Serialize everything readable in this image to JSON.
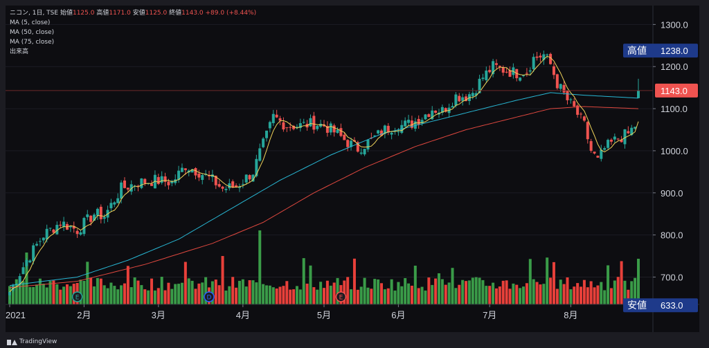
{
  "legend": {
    "symbol": "ニコン, 1日, TSE",
    "open_label": "始値",
    "open": "1125.0",
    "high_label": "高値",
    "high": "1171.0",
    "low_label": "安値",
    "low": "1125.0",
    "close_label": "終値",
    "close": "1143.0",
    "change": "+89.0 (+8.44%)",
    "ma5": "MA (5, close)",
    "ma50": "MA (50, close)",
    "ma75": "MA (75, close)",
    "volume": "出来高"
  },
  "footer": {
    "brand": "TradingView"
  },
  "colors": {
    "up": "#26a69a",
    "down": "#ef5350",
    "ma5": "#f0d35a",
    "ma50": "#28b7d4",
    "ma75": "#e0483f",
    "vol_up": "#3a9b48",
    "vol_down": "#e8403a",
    "badge": "#1e3a8a"
  },
  "chart_data": {
    "type": "candlestick",
    "y_axis": {
      "ticks": [
        "1300.0",
        "1200.0",
        "1100.0",
        "1000.0",
        "900.0",
        "800.0",
        "700.0"
      ],
      "range": [
        635,
        1345
      ]
    },
    "x_axis": {
      "ticks": [
        "2021",
        "2月",
        "3月",
        "4月",
        "5月",
        "6月",
        "7月",
        "8月"
      ]
    },
    "price_labels": {
      "high_label": "高値",
      "high": "1238.0",
      "last": "1143.0",
      "low_label": "安値",
      "low": "633.0"
    },
    "events": [
      {
        "label": "E",
        "date": "2月"
      },
      {
        "label": "D",
        "date": "3月"
      },
      {
        "label": "E",
        "date": "5月"
      }
    ],
    "anchors": [
      [
        0,
        665
      ],
      [
        5,
        740
      ],
      [
        10,
        800
      ],
      [
        15,
        830
      ],
      [
        20,
        812
      ],
      [
        25,
        850
      ],
      [
        28,
        845
      ],
      [
        33,
        910
      ],
      [
        38,
        925
      ],
      [
        43,
        930
      ],
      [
        48,
        925
      ],
      [
        52,
        965
      ],
      [
        56,
        950
      ],
      [
        60,
        930
      ],
      [
        63,
        910
      ],
      [
        67,
        915
      ],
      [
        72,
        950
      ],
      [
        74,
        995
      ],
      [
        76,
        1035
      ],
      [
        78,
        1080
      ],
      [
        82,
        1060
      ],
      [
        86,
        1060
      ],
      [
        90,
        1065
      ],
      [
        93,
        1060
      ],
      [
        96,
        1045
      ],
      [
        100,
        1020
      ],
      [
        103,
        1005
      ],
      [
        107,
        1025
      ],
      [
        111,
        1050
      ],
      [
        114,
        1060
      ],
      [
        116,
        1060
      ],
      [
        119,
        1065
      ],
      [
        122,
        1080
      ],
      [
        125,
        1100
      ],
      [
        128,
        1095
      ],
      [
        132,
        1130
      ],
      [
        135,
        1130
      ],
      [
        137,
        1140
      ],
      [
        140,
        1175
      ],
      [
        143,
        1200
      ],
      [
        147,
        1190
      ],
      [
        150,
        1185
      ],
      [
        153,
        1190
      ],
      [
        155,
        1220
      ],
      [
        158,
        1228
      ],
      [
        160,
        1205
      ],
      [
        162,
        1160
      ],
      [
        165,
        1120
      ],
      [
        167,
        1100
      ],
      [
        170,
        1060
      ],
      [
        172,
        1000
      ],
      [
        174,
        975
      ],
      [
        176,
        1005
      ],
      [
        180,
        1030
      ],
      [
        183,
        1040
      ],
      [
        185,
        1060
      ],
      [
        186,
        1143
      ]
    ],
    "ma50_anchors": [
      [
        0,
        680
      ],
      [
        20,
        700
      ],
      [
        35,
        740
      ],
      [
        50,
        790
      ],
      [
        65,
        860
      ],
      [
        80,
        930
      ],
      [
        95,
        990
      ],
      [
        110,
        1040
      ],
      [
        125,
        1070
      ],
      [
        140,
        1100
      ],
      [
        150,
        1120
      ],
      [
        160,
        1138
      ],
      [
        170,
        1132
      ],
      [
        186,
        1125
      ]
    ],
    "ma75_anchors": [
      [
        0,
        675
      ],
      [
        20,
        690
      ],
      [
        40,
        730
      ],
      [
        60,
        780
      ],
      [
        75,
        830
      ],
      [
        90,
        900
      ],
      [
        105,
        960
      ],
      [
        120,
        1010
      ],
      [
        135,
        1050
      ],
      [
        150,
        1080
      ],
      [
        160,
        1100
      ],
      [
        170,
        1105
      ],
      [
        186,
        1100
      ]
    ]
  }
}
